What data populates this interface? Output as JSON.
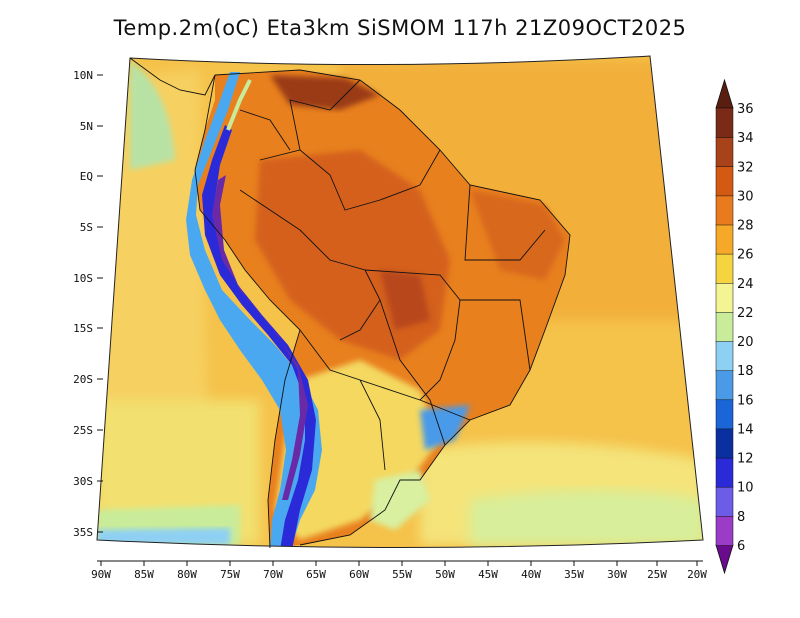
{
  "title": "Temp.2m(oC) Eta3km SiSMOM 117h 21Z09OCT2025",
  "map": {
    "lat_labels": [
      "10N",
      "5N",
      "EQ",
      "5S",
      "10S",
      "15S",
      "20S",
      "25S",
      "30S",
      "35S"
    ],
    "lon_labels": [
      "90W",
      "85W",
      "80W",
      "75W",
      "70W",
      "65W",
      "60W",
      "55W",
      "50W",
      "45W",
      "40W",
      "35W",
      "30W",
      "25W",
      "20W"
    ],
    "extent": {
      "lon_min": -90,
      "lon_max": -20,
      "lat_min": -37,
      "lat_max": 12
    }
  },
  "colorbar": {
    "levels": [
      "6",
      "8",
      "10",
      "12",
      "14",
      "16",
      "18",
      "20",
      "22",
      "24",
      "26",
      "28",
      "30",
      "32",
      "34",
      "36"
    ],
    "colors": [
      "#6a0a8c",
      "#9b3cc8",
      "#6c5ce8",
      "#2a2ad8",
      "#0a2fa0",
      "#1a66d8",
      "#4a9ae8",
      "#8ed0f4",
      "#c8ec9a",
      "#f4f494",
      "#f6d440",
      "#f6a828",
      "#ea7a1e",
      "#d45a14",
      "#a8421a",
      "#7a2a16",
      "#5a1e10"
    ]
  },
  "land_colors": {
    "ocean_south": "#f2c85a",
    "ocean_north": "#f0b440",
    "land_hot": "#e8801e",
    "land_very_hot": "#c8501a",
    "andes_cold": "#5a3aa8",
    "south_mild": "#f4e27a"
  }
}
